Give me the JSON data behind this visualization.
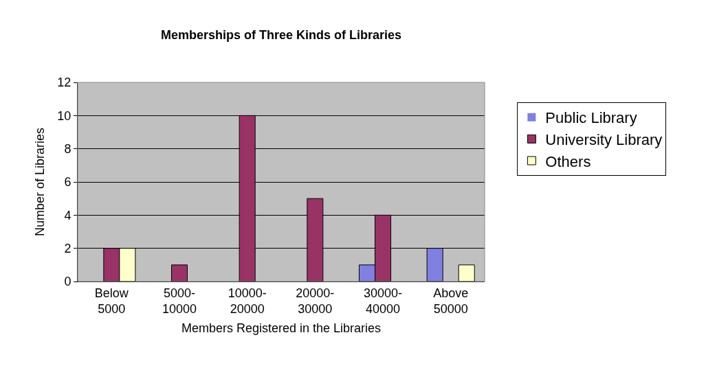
{
  "chart_data": {
    "type": "bar",
    "title": "Memberships of Three Kinds of Libraries",
    "xlabel": "Members Registered in the Libraries",
    "ylabel": "Number of Libraries",
    "categories": [
      "Below 5000",
      "5000-10000",
      "10000-20000",
      "20000-30000",
      "30000-40000",
      "Above 50000"
    ],
    "series": [
      {
        "name": "Public Library",
        "color": "#8080e0",
        "values": [
          0,
          0,
          0,
          0,
          1,
          2
        ]
      },
      {
        "name": "University Library",
        "color": "#993366",
        "values": [
          2,
          1,
          10,
          5,
          4,
          0
        ]
      },
      {
        "name": "Others",
        "color": "#ffffcc",
        "values": [
          2,
          0,
          0,
          0,
          0,
          1
        ]
      }
    ],
    "ylim": [
      0,
      12
    ],
    "yticks": [
      0,
      2,
      4,
      6,
      8,
      10,
      12
    ],
    "grid": "y",
    "legend": "right"
  }
}
